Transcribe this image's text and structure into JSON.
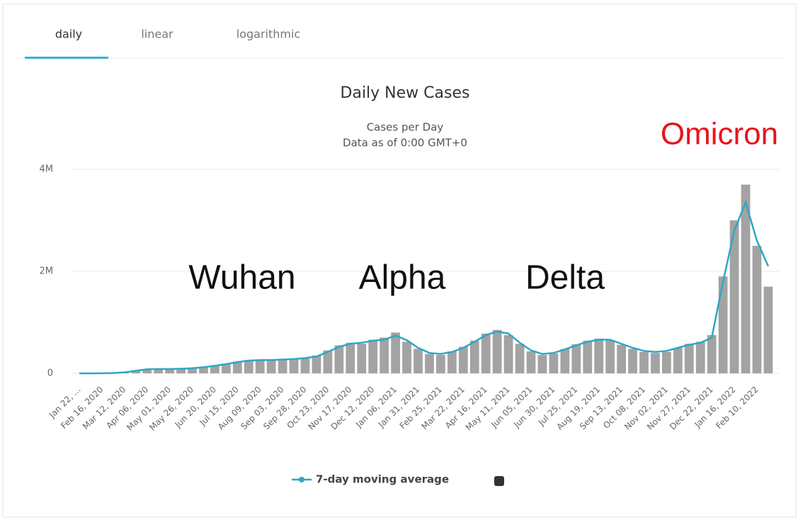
{
  "tabs": [
    "daily",
    "linear",
    "logarithmic"
  ],
  "chart_data": {
    "type": "bar",
    "title": "Daily New Cases",
    "subtitle": [
      "Cases per Day",
      "Data as of 0:00 GMT+0"
    ],
    "annotations": [
      {
        "text": "Wuhan",
        "color": "#111111"
      },
      {
        "text": "Alpha",
        "color": "#111111"
      },
      {
        "text": "Delta",
        "color": "#111111"
      },
      {
        "text": "Omicron",
        "color": "#e8141b"
      }
    ],
    "categories": [
      "Jan 22, ...",
      null,
      "Feb 16, 2020",
      null,
      "Mar 12, 2020",
      null,
      "Apr 06, 2020",
      null,
      "May 01, 2020",
      null,
      "May 26, 2020",
      null,
      "Jun 20, 2020",
      null,
      "Jul 15, 2020",
      null,
      "Aug 09, 2020",
      null,
      "Sep 03, 2020",
      null,
      "Sep 28, 2020",
      null,
      "Oct 23, 2020",
      null,
      "Nov 17, 2020",
      null,
      "Dec 12, 2020",
      null,
      "Jan 06, 2021",
      null,
      "Jan 31, 2021",
      null,
      "Feb 25, 2021",
      null,
      "Mar 22, 2021",
      null,
      "Apr 16, 2021",
      null,
      "May 11, 2021",
      null,
      "Jun 05, 2021",
      null,
      "Jun 30, 2021",
      null,
      "Jul 25, 2021",
      null,
      "Aug 19, 2021",
      null,
      "Sep 13, 2021",
      null,
      "Oct 08, 2021",
      null,
      "Nov 02, 2021",
      null,
      "Nov 27, 2021",
      null,
      "Dec 22, 2021",
      null,
      "Jan 16, 2022",
      null,
      "Feb 10, 2022",
      null
    ],
    "series": [
      {
        "type": "bar",
        "color": "#a3a3a3",
        "values": [
          0,
          0,
          3000,
          6000,
          25000,
          60000,
          80000,
          80000,
          80000,
          90000,
          100000,
          120000,
          150000,
          190000,
          230000,
          260000,
          250000,
          270000,
          270000,
          290000,
          300000,
          350000,
          450000,
          550000,
          600000,
          580000,
          660000,
          700000,
          800000,
          620000,
          480000,
          380000,
          360000,
          430000,
          520000,
          640000,
          780000,
          850000,
          750000,
          580000,
          430000,
          360000,
          390000,
          480000,
          570000,
          640000,
          680000,
          650000,
          560000,
          480000,
          420000,
          400000,
          420000,
          500000,
          580000,
          620000,
          750000,
          1900000,
          3000000,
          3700000,
          2500000,
          1700000
        ]
      },
      {
        "type": "line",
        "name": "7-day moving average",
        "color": "#2ea7c4",
        "values": [
          0,
          0,
          2000,
          5000,
          20000,
          50000,
          80000,
          85000,
          85000,
          90000,
          100000,
          120000,
          150000,
          180000,
          220000,
          250000,
          260000,
          260000,
          270000,
          280000,
          300000,
          330000,
          420000,
          520000,
          580000,
          600000,
          640000,
          660000,
          740000,
          650000,
          500000,
          400000,
          380000,
          420000,
          500000,
          620000,
          750000,
          820000,
          780000,
          600000,
          450000,
          380000,
          400000,
          470000,
          550000,
          620000,
          660000,
          660000,
          580000,
          500000,
          440000,
          420000,
          440000,
          500000,
          560000,
          600000,
          700000,
          1800000,
          2800000,
          3350000,
          2600000,
          2100000
        ]
      }
    ],
    "ylim": [
      0,
      4000000
    ],
    "yticks": [
      0,
      {
        "value": 2000000,
        "label": "2M"
      },
      {
        "value": 4000000,
        "label": "4M"
      }
    ],
    "grid": true,
    "legend": "bottom"
  }
}
